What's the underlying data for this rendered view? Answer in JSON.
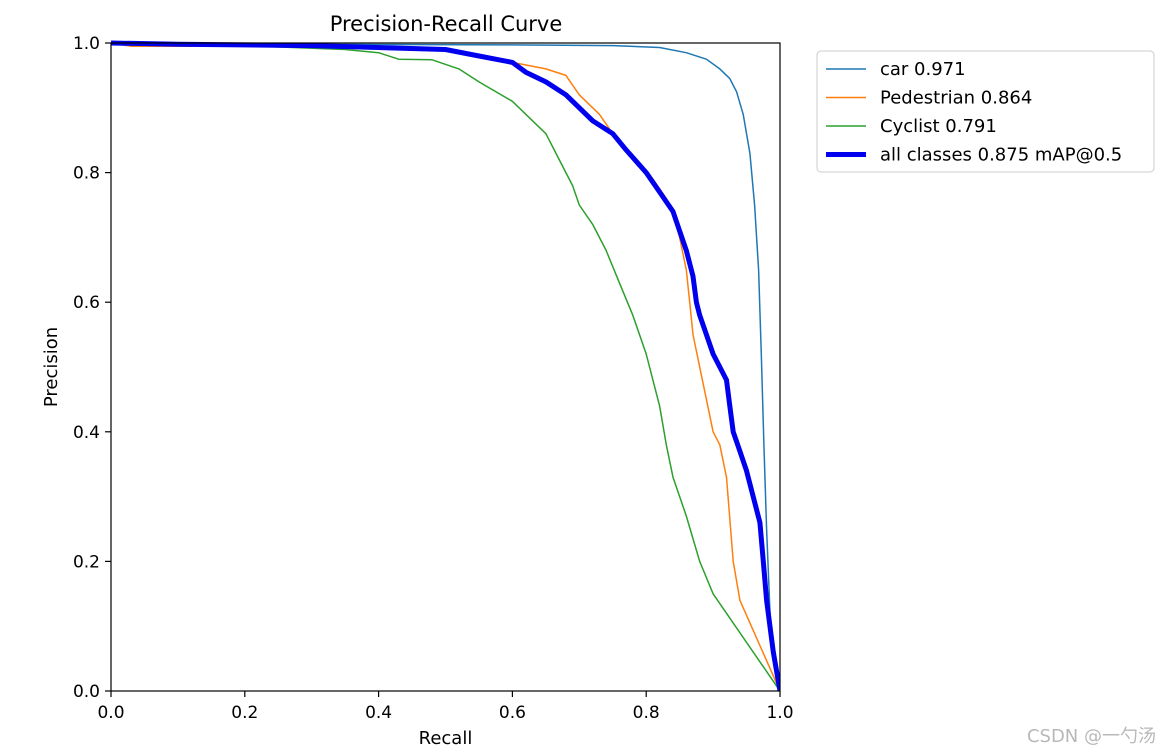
{
  "chart_data": {
    "type": "line",
    "title": "Precision-Recall Curve",
    "xlabel": "Recall",
    "ylabel": "Precision",
    "xlim": [
      0,
      1
    ],
    "ylim": [
      0,
      1
    ],
    "xticks": [
      "0.0",
      "0.2",
      "0.4",
      "0.6",
      "0.8",
      "1.0"
    ],
    "yticks": [
      "0.0",
      "0.2",
      "0.4",
      "0.6",
      "0.8",
      "1.0"
    ],
    "grid": false,
    "legend_position": "outside-upper-right",
    "series": [
      {
        "name": "car 0.971",
        "color": "#1f77b4",
        "width": 1.5,
        "x": [
          0,
          0.1,
          0.3,
          0.6,
          0.75,
          0.82,
          0.86,
          0.89,
          0.91,
          0.925,
          0.935,
          0.945,
          0.955,
          0.962,
          0.968,
          0.972,
          0.976,
          0.98,
          0.985,
          0.99,
          0.995,
          1.0
        ],
        "y": [
          1.0,
          0.999,
          0.998,
          0.997,
          0.996,
          0.993,
          0.985,
          0.975,
          0.96,
          0.945,
          0.925,
          0.89,
          0.83,
          0.75,
          0.65,
          0.52,
          0.38,
          0.25,
          0.12,
          0.05,
          0.02,
          0.0
        ]
      },
      {
        "name": "Pedestrian 0.864",
        "color": "#ff7f0e",
        "width": 1.5,
        "x": [
          0,
          0.03,
          0.1,
          0.3,
          0.5,
          0.6,
          0.65,
          0.68,
          0.7,
          0.73,
          0.75,
          0.78,
          0.8,
          0.81,
          0.83,
          0.84,
          0.85,
          0.86,
          0.865,
          0.87,
          0.88,
          0.89,
          0.9,
          0.91,
          0.92,
          0.93,
          0.94,
          1.0
        ],
        "y": [
          1.0,
          0.995,
          0.995,
          0.995,
          0.99,
          0.97,
          0.96,
          0.95,
          0.92,
          0.89,
          0.86,
          0.82,
          0.8,
          0.79,
          0.76,
          0.74,
          0.7,
          0.65,
          0.6,
          0.55,
          0.5,
          0.45,
          0.4,
          0.38,
          0.33,
          0.2,
          0.14,
          0.0
        ]
      },
      {
        "name": "Cyclist 0.791",
        "color": "#2ca02c",
        "width": 1.5,
        "x": [
          0,
          0.05,
          0.2,
          0.35,
          0.4,
          0.43,
          0.48,
          0.52,
          0.55,
          0.6,
          0.62,
          0.65,
          0.67,
          0.69,
          0.7,
          0.72,
          0.74,
          0.76,
          0.78,
          0.8,
          0.81,
          0.82,
          0.83,
          0.84,
          0.86,
          0.88,
          0.9,
          1.0
        ],
        "y": [
          1.0,
          0.997,
          0.996,
          0.99,
          0.985,
          0.975,
          0.974,
          0.96,
          0.94,
          0.91,
          0.89,
          0.86,
          0.82,
          0.78,
          0.75,
          0.72,
          0.68,
          0.63,
          0.58,
          0.52,
          0.48,
          0.44,
          0.38,
          0.33,
          0.27,
          0.2,
          0.15,
          0.0
        ]
      },
      {
        "name": "all classes 0.875 mAP@0.5",
        "color": "#0000ee",
        "width": 5,
        "x": [
          0,
          0.1,
          0.3,
          0.5,
          0.55,
          0.6,
          0.62,
          0.65,
          0.68,
          0.7,
          0.72,
          0.75,
          0.77,
          0.8,
          0.82,
          0.84,
          0.85,
          0.86,
          0.87,
          0.875,
          0.88,
          0.89,
          0.9,
          0.91,
          0.92,
          0.925,
          0.93,
          0.94,
          0.95,
          0.96,
          0.97,
          0.975,
          0.98,
          0.99,
          1.0
        ],
        "y": [
          1.0,
          0.998,
          0.996,
          0.99,
          0.98,
          0.97,
          0.955,
          0.94,
          0.92,
          0.9,
          0.88,
          0.86,
          0.835,
          0.8,
          0.77,
          0.74,
          0.71,
          0.68,
          0.64,
          0.6,
          0.58,
          0.55,
          0.52,
          0.5,
          0.48,
          0.44,
          0.4,
          0.37,
          0.34,
          0.3,
          0.26,
          0.2,
          0.14,
          0.06,
          0.0
        ]
      }
    ]
  },
  "watermark": "CSDN @一勺汤"
}
